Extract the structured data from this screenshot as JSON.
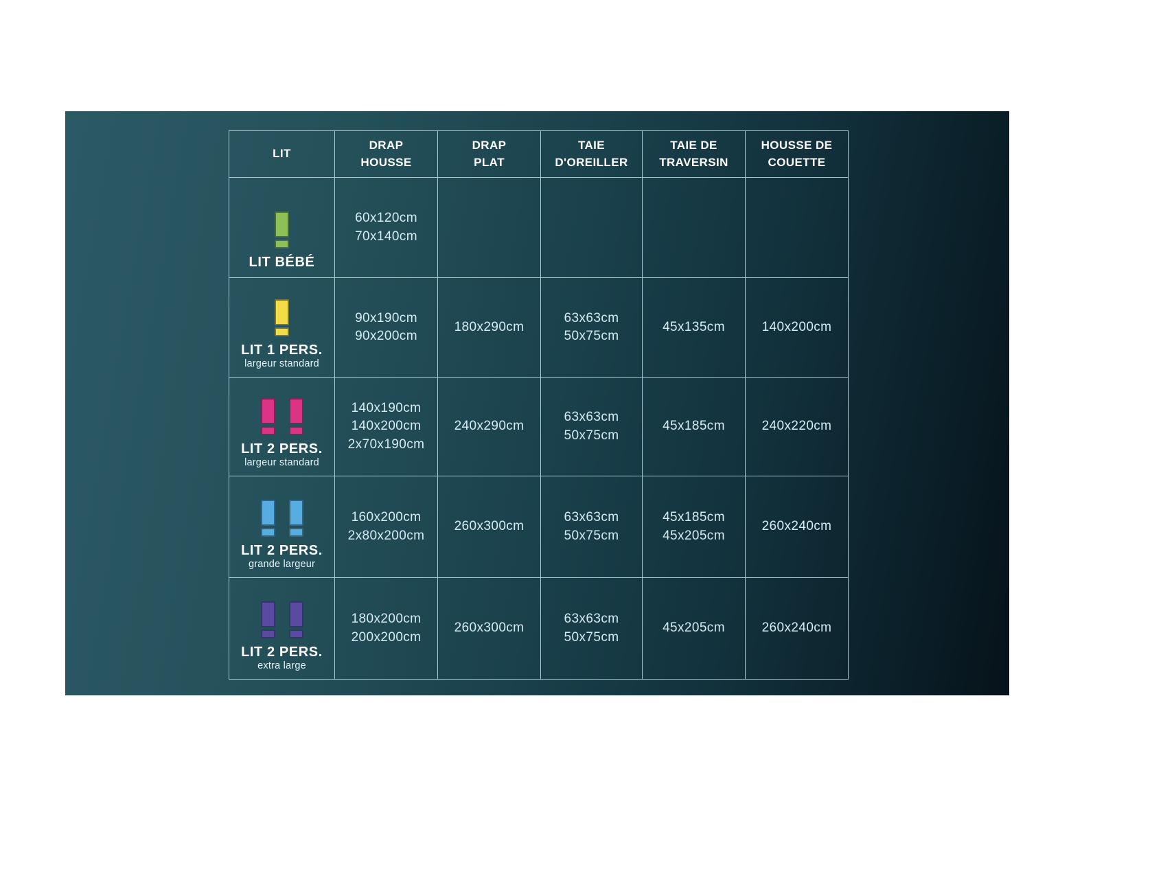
{
  "colors": {
    "page_bg": "#ffffff",
    "panel_gradient_left": "#2c5a64",
    "panel_gradient_right": "#071219",
    "grid_line": "#bee0e9",
    "header_text": "#ffffff",
    "cell_text": "#d6ebf2",
    "icon_green": "#8dc158",
    "icon_yellow": "#f2dd49",
    "icon_pink": "#dd3387",
    "icon_blue": "#58ade0",
    "icon_purple": "#5a4ba1"
  },
  "table": {
    "columns": [
      {
        "id": "lit",
        "lines": [
          "LIT"
        ]
      },
      {
        "id": "drap-housse",
        "lines": [
          "DRAP",
          "HOUSSE"
        ]
      },
      {
        "id": "drap-plat",
        "lines": [
          "DRAP",
          "PLAT"
        ]
      },
      {
        "id": "taie-oreiller",
        "lines": [
          "TAIE",
          "D'OREILLER"
        ]
      },
      {
        "id": "taie-traversin",
        "lines": [
          "TAIE DE",
          "TRAVERSIN"
        ]
      },
      {
        "id": "housse-couette",
        "lines": [
          "HOUSSE DE",
          "COUETTE"
        ]
      }
    ],
    "rows": [
      {
        "bed": {
          "label": "LIT BÉBÉ",
          "sublabel": "",
          "icon_color": "#8dc158",
          "icon_count": 1
        },
        "cells": [
          [
            "60x120cm",
            "70x140cm"
          ],
          [],
          [],
          [],
          []
        ]
      },
      {
        "bed": {
          "label": "LIT 1 PERS.",
          "sublabel": "largeur standard",
          "icon_color": "#f2dd49",
          "icon_count": 1
        },
        "cells": [
          [
            "90x190cm",
            "90x200cm"
          ],
          [
            "180x290cm"
          ],
          [
            "63x63cm",
            "50x75cm"
          ],
          [
            "45x135cm"
          ],
          [
            "140x200cm"
          ]
        ]
      },
      {
        "bed": {
          "label": "LIT 2 PERS.",
          "sublabel": "largeur standard",
          "icon_color": "#dd3387",
          "icon_count": 2
        },
        "cells": [
          [
            "140x190cm",
            "140x200cm",
            "2x70x190cm"
          ],
          [
            "240x290cm"
          ],
          [
            "63x63cm",
            "50x75cm"
          ],
          [
            "45x185cm"
          ],
          [
            "240x220cm"
          ]
        ]
      },
      {
        "bed": {
          "label": "LIT 2 PERS.",
          "sublabel": "grande largeur",
          "icon_color": "#58ade0",
          "icon_count": 2
        },
        "cells": [
          [
            "160x200cm",
            "2x80x200cm"
          ],
          [
            "260x300cm"
          ],
          [
            "63x63cm",
            "50x75cm"
          ],
          [
            "45x185cm",
            "45x205cm"
          ],
          [
            "260x240cm"
          ]
        ]
      },
      {
        "bed": {
          "label": "LIT 2 PERS.",
          "sublabel": "extra large",
          "icon_color": "#5a4ba1",
          "icon_count": 2
        },
        "cells": [
          [
            "180x200cm",
            "200x200cm"
          ],
          [
            "260x300cm"
          ],
          [
            "63x63cm",
            "50x75cm"
          ],
          [
            "45x205cm"
          ],
          [
            "260x240cm"
          ]
        ]
      }
    ]
  }
}
